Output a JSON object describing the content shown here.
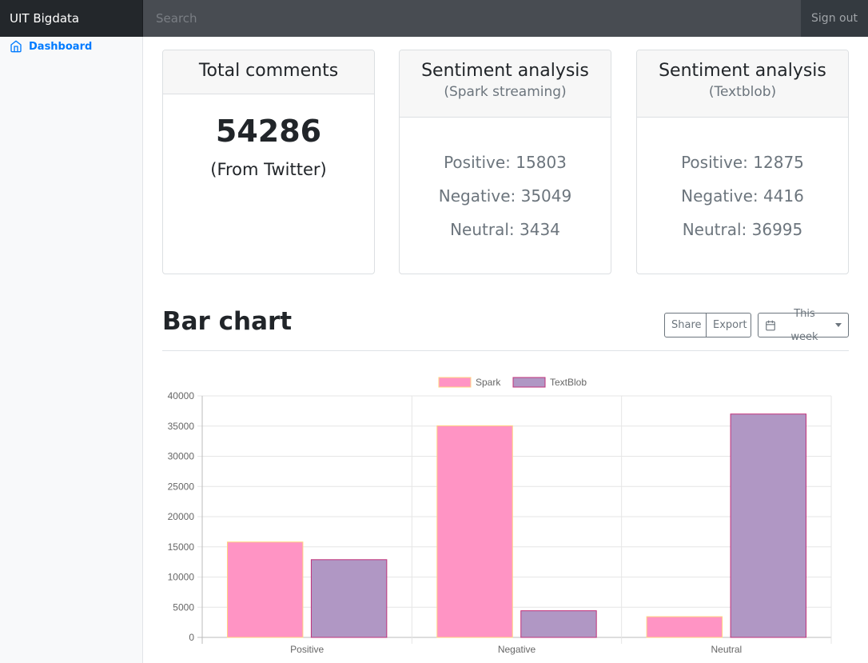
{
  "navbar": {
    "brand": "UIT Bigdata",
    "search_placeholder": "Search",
    "signout": "Sign out"
  },
  "sidebar": {
    "items": [
      {
        "label": "Dashboard",
        "icon": "home-icon"
      }
    ]
  },
  "cards": [
    {
      "title": "Total comments",
      "value": "54286",
      "subtitle": "(From Twitter)"
    },
    {
      "title": "Sentiment analysis",
      "subtitle": "(Spark streaming)",
      "lines": [
        "Positive: 15803",
        "Negative: 35049",
        "Neutral: 3434"
      ]
    },
    {
      "title": "Sentiment analysis",
      "subtitle": "(Textblob)",
      "lines": [
        "Positive: 12875",
        "Negative: 4416",
        "Neutral: 36995"
      ]
    }
  ],
  "section": {
    "title": "Bar chart",
    "share_label": "Share",
    "export_label": "Export",
    "period_label": "This week"
  },
  "colors": {
    "accent": "#007bff",
    "spark_fill": "#ff94c4",
    "spark_border": "#ffd480",
    "textblob_fill": "#b097c4",
    "textblob_border": "#c0307a"
  },
  "chart_data": {
    "type": "bar",
    "categories": [
      "Positive",
      "Negative",
      "Neutral"
    ],
    "series": [
      {
        "name": "Spark",
        "values": [
          15803,
          35049,
          3434
        ]
      },
      {
        "name": "TextBlob",
        "values": [
          12875,
          4416,
          36995
        ]
      }
    ],
    "yticks": [
      "0",
      "5000",
      "10000",
      "15000",
      "20000",
      "25000",
      "30000",
      "35000",
      "40000"
    ],
    "ylim": [
      0,
      40000
    ],
    "legend": "top",
    "grid": true
  }
}
